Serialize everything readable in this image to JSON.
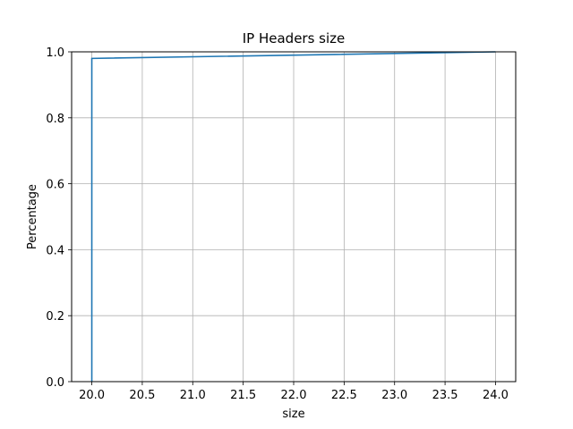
{
  "chart_data": {
    "type": "line",
    "title": "IP Headers size",
    "xlabel": "size",
    "ylabel": "Percentage",
    "xlim": [
      19.8,
      24.2
    ],
    "ylim": [
      0.0,
      1.0
    ],
    "x_ticks": [
      20.0,
      20.5,
      21.0,
      21.5,
      22.0,
      22.5,
      23.0,
      23.5,
      24.0
    ],
    "x_tick_labels": [
      "20.0",
      "20.5",
      "21.0",
      "21.5",
      "22.0",
      "22.5",
      "23.0",
      "23.5",
      "24.0"
    ],
    "y_ticks": [
      0.0,
      0.2,
      0.4,
      0.6,
      0.8,
      1.0
    ],
    "y_tick_labels": [
      "0.0",
      "0.2",
      "0.4",
      "0.6",
      "0.8",
      "1.0"
    ],
    "grid": true,
    "series": [
      {
        "x": [
          20.0,
          20.0,
          24.0
        ],
        "y": [
          0.0,
          0.98,
          1.0
        ]
      }
    ],
    "colors": {
      "line": "#1f77b4",
      "grid": "#b0b0b0",
      "axes": "#000000"
    }
  }
}
